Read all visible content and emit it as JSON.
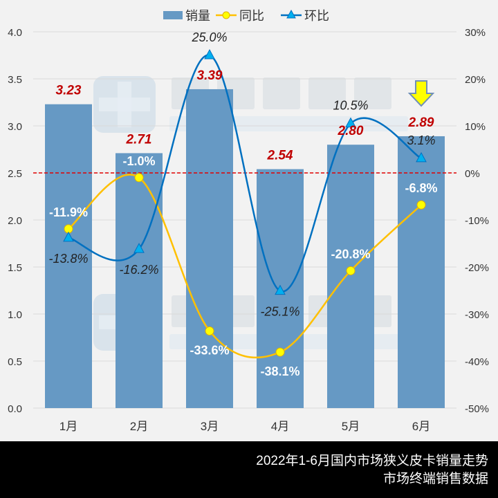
{
  "chart_data": {
    "type": "bar",
    "categories": [
      "1月",
      "2月",
      "3月",
      "4月",
      "5月",
      "6月"
    ],
    "series": [
      {
        "name": "销量",
        "type": "bar",
        "axis": "left",
        "values": [
          3.23,
          2.71,
          3.39,
          2.54,
          2.8,
          2.89
        ],
        "labels": [
          "3.23",
          "2.71",
          "3.39",
          "2.54",
          "2.80",
          "2.89"
        ],
        "color": "#6699c4"
      },
      {
        "name": "同比",
        "type": "line",
        "axis": "right",
        "values": [
          -11.9,
          -1.0,
          -33.6,
          -38.1,
          -20.8,
          -6.8
        ],
        "labels": [
          "-11.9%",
          "-1.0%",
          "-33.6%",
          "-38.1%",
          "-20.8%",
          "-6.8%"
        ],
        "color": "#ffc000",
        "marker": "circle"
      },
      {
        "name": "环比",
        "type": "line",
        "axis": "right",
        "values": [
          -13.8,
          -16.2,
          25.0,
          -25.1,
          10.5,
          3.1
        ],
        "labels": [
          "-13.8%",
          "-16.2%",
          "25.0%",
          "-25.1%",
          "10.5%",
          "3.1%"
        ],
        "color": "#0070c0",
        "marker": "triangle"
      }
    ],
    "y_left": {
      "range": [
        0,
        4.0
      ],
      "ticks": [
        "0.0",
        "0.5",
        "1.0",
        "1.5",
        "2.0",
        "2.5",
        "3.0",
        "3.5",
        "4.0"
      ]
    },
    "y_right": {
      "range": [
        -50,
        30
      ],
      "ticks": [
        "-50%",
        "-40%",
        "-30%",
        "-20%",
        "-10%",
        "0%",
        "10%",
        "20%",
        "30%"
      ]
    },
    "reference_line": {
      "value": 2.5,
      "color": "#e00000",
      "style": "dashed"
    },
    "legend_placement": "top",
    "grid": true,
    "annotation": "down-arrow-icon over 6月",
    "bar_label_color": "#c00000"
  },
  "watermark": {
    "cn": "提加商用车",
    "en": "TruckPlus CV studio"
  },
  "footer": {
    "line1": "2022年1-6月国内市场狭义皮卡销量走势",
    "line2": "市场终端销售数据"
  }
}
